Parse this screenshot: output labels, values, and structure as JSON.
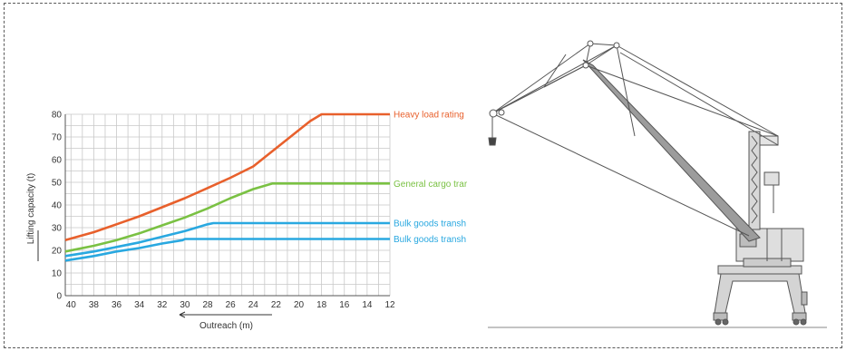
{
  "chart_data": {
    "type": "line",
    "xlabel": "Outreach (m)",
    "ylabel": "Lifting capacity (t)",
    "x_ticks": [
      40,
      38,
      36,
      34,
      32,
      30,
      28,
      26,
      24,
      22,
      20,
      18,
      16,
      14,
      12
    ],
    "y_ticks": [
      0,
      10,
      20,
      30,
      40,
      50,
      60,
      70,
      80
    ],
    "xlim": [
      40.5,
      12
    ],
    "ylim": [
      0,
      80
    ],
    "x_reversed": true,
    "grid": true,
    "legend": "right, inline labels at line ends",
    "series": [
      {
        "name": "Heavy load rating",
        "color": "#e8602c",
        "x": [
          40.5,
          38,
          36,
          34,
          32,
          30,
          28,
          26,
          24,
          23,
          22,
          20,
          19,
          18,
          12
        ],
        "y": [
          24.5,
          28,
          31.5,
          35,
          39,
          43,
          47.5,
          52,
          57,
          61,
          65,
          73,
          77,
          80,
          80
        ]
      },
      {
        "name": "General cargo trar",
        "color": "#7ac143",
        "x": [
          40.5,
          38,
          36,
          34,
          32,
          30,
          28,
          26,
          24,
          22.3,
          22,
          12
        ],
        "y": [
          19.5,
          22,
          24.5,
          27.5,
          31,
          34.5,
          38.5,
          43,
          47,
          49.5,
          49.5,
          49.5
        ]
      },
      {
        "name": "Bulk goods transh",
        "color": "#29a8e0",
        "x": [
          40.5,
          38,
          36,
          34,
          32,
          30,
          29,
          28,
          27.5,
          12
        ],
        "y": [
          17.5,
          19.5,
          21.5,
          23.5,
          26,
          28.5,
          30,
          31.5,
          32,
          32
        ]
      },
      {
        "name": "Bulk goods transh",
        "color": "#29a8e0",
        "x": [
          40.5,
          38,
          36,
          34,
          32,
          30.2,
          30,
          12
        ],
        "y": [
          15.5,
          17.5,
          19.5,
          21,
          23,
          24.5,
          25,
          25
        ]
      }
    ]
  },
  "crane": {
    "stroke": "#555555",
    "fill": "#cfcfcf",
    "ground": "#888888"
  }
}
